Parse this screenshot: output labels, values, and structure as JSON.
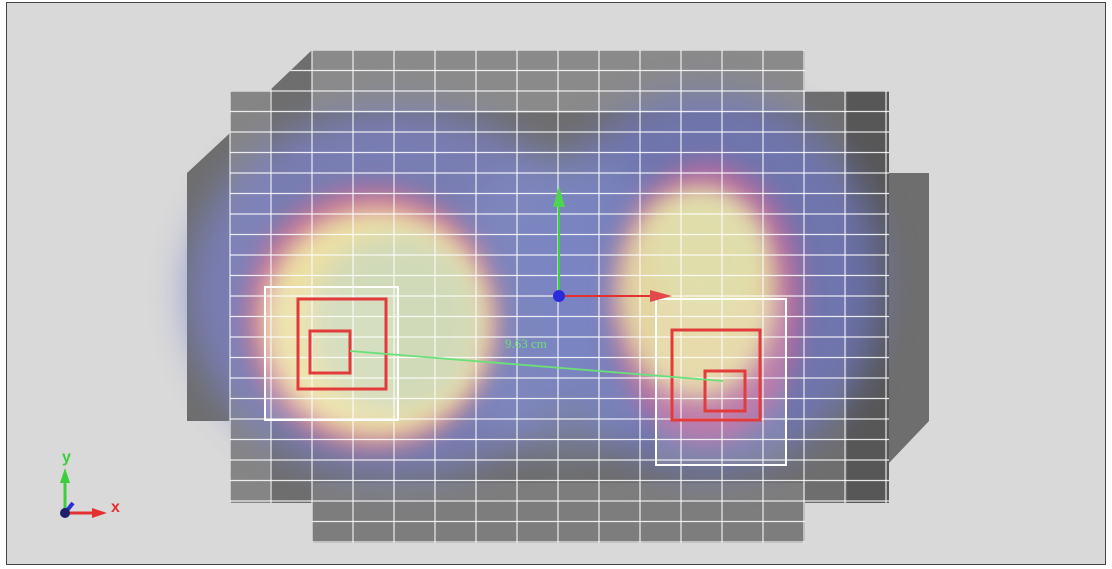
{
  "colors": {
    "background": "#d9d9d9",
    "border": "#444444",
    "grid_line": "#ffffff",
    "dose_low": "#6f78c8",
    "dose_mid": "#c86a9a",
    "dose_high": "#e8e6a8",
    "target_box": "#e23b3b",
    "distance_line": "#6be07a",
    "axis_x": "#e53030",
    "axis_y": "#3ccf3c",
    "axis_z": "#2b2bd9"
  },
  "measurement": {
    "distance_label": "9.63 cm"
  },
  "triad": {
    "x_label": "x",
    "y_label": "y"
  }
}
